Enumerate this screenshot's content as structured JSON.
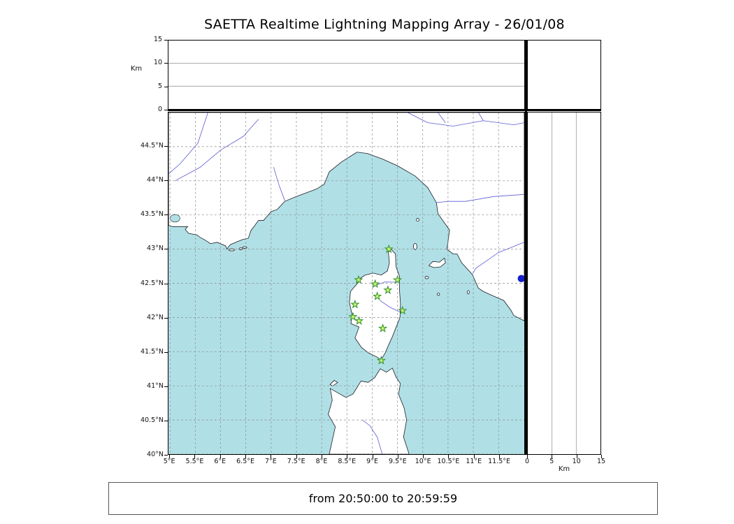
{
  "title": "SAETTA Realtime Lightning Mapping Array - 26/01/08",
  "status_bar": {
    "text": "from 20:50:00 to 20:59:59"
  },
  "top_panel": {
    "unit_label": "Km",
    "tick_labels": [
      "0",
      "5",
      "10",
      "15"
    ],
    "tick_values": [
      0,
      5,
      10,
      15
    ],
    "gridline_values": [
      5,
      10
    ],
    "range_km": [
      0,
      15
    ]
  },
  "right_panel": {
    "unit_label": "Km",
    "tick_labels": [
      "0",
      "5",
      "10",
      "15"
    ],
    "tick_values": [
      0,
      5,
      10,
      15
    ],
    "gridline_values": [
      5,
      10
    ],
    "range_km": [
      0,
      15
    ]
  },
  "map": {
    "lat_ticks": [
      {
        "label": "44.5°N",
        "value": 44.5
      },
      {
        "label": "44°N",
        "value": 44.0
      },
      {
        "label": "43.5°N",
        "value": 43.5
      },
      {
        "label": "43°N",
        "value": 43.0
      },
      {
        "label": "42.5°N",
        "value": 42.5
      },
      {
        "label": "42°N",
        "value": 42.0
      },
      {
        "label": "41.5°N",
        "value": 41.5
      },
      {
        "label": "41°N",
        "value": 41.0
      },
      {
        "label": "40.5°N",
        "value": 40.5
      },
      {
        "label": "40°N",
        "value": 40.0
      }
    ],
    "lon_ticks": [
      {
        "label": "5°E",
        "value": 5.0
      },
      {
        "label": "5.5°E",
        "value": 5.5
      },
      {
        "label": "6°E",
        "value": 6.0
      },
      {
        "label": "6.5°E",
        "value": 6.5
      },
      {
        "label": "7°E",
        "value": 7.0
      },
      {
        "label": "7.5°E",
        "value": 7.5
      },
      {
        "label": "8°E",
        "value": 8.0
      },
      {
        "label": "8.5°E",
        "value": 8.5
      },
      {
        "label": "9°E",
        "value": 9.0
      },
      {
        "label": "9.5°E",
        "value": 9.5
      },
      {
        "label": "10°E",
        "value": 10.0
      },
      {
        "label": "10.5°E",
        "value": 10.5
      },
      {
        "label": "11°E",
        "value": 11.0
      },
      {
        "label": "11.5°E",
        "value": 11.5
      }
    ],
    "lat_range": [
      40.0,
      45.0
    ],
    "lon_range": [
      4.97,
      12.01
    ]
  },
  "chart_data": {
    "type": "scatter",
    "title": "SAETTA Realtime Lightning Mapping Array - 26/01/08",
    "time_window": "from 20:50:00 to 20:59:59",
    "panels": [
      "altitude_km vs longitude (empty)",
      "map lon/lat with station markers",
      "altitude_km vs latitude (empty)",
      "histogram panel (empty)"
    ],
    "altitude_axis_km": {
      "range": [
        0,
        15
      ],
      "ticks": [
        0,
        5,
        10,
        15
      ],
      "gridlines": [
        5,
        10
      ],
      "unit": "Km"
    },
    "map_axes": {
      "lon_range_deg_e": [
        4.97,
        12.01
      ],
      "lat_range_deg_n": [
        40.0,
        45.0
      ],
      "grid_step_deg": 0.5,
      "grid_style": "dashed"
    },
    "stations": [
      {
        "lon": 9.33,
        "lat": 43.0
      },
      {
        "lon": 8.73,
        "lat": 42.55
      },
      {
        "lon": 9.06,
        "lat": 42.49
      },
      {
        "lon": 9.5,
        "lat": 42.55
      },
      {
        "lon": 9.31,
        "lat": 42.4
      },
      {
        "lon": 9.1,
        "lat": 42.31
      },
      {
        "lon": 8.66,
        "lat": 42.19
      },
      {
        "lon": 9.6,
        "lat": 42.1
      },
      {
        "lon": 8.62,
        "lat": 42.01
      },
      {
        "lon": 8.74,
        "lat": 41.95
      },
      {
        "lon": 9.21,
        "lat": 41.84
      },
      {
        "lon": 9.18,
        "lat": 41.37
      }
    ],
    "sources": [
      {
        "lon": 11.95,
        "lat": 42.57
      }
    ],
    "colors": {
      "sea": "#b0e0e6",
      "land": "#ffffff",
      "coast": "#1c1c24",
      "river": "#5b5bd6",
      "grid": "#8a8a8a",
      "station_fill": "#c8f56e",
      "station_stroke": "#2f8f2f",
      "source": "#1520c8"
    }
  }
}
